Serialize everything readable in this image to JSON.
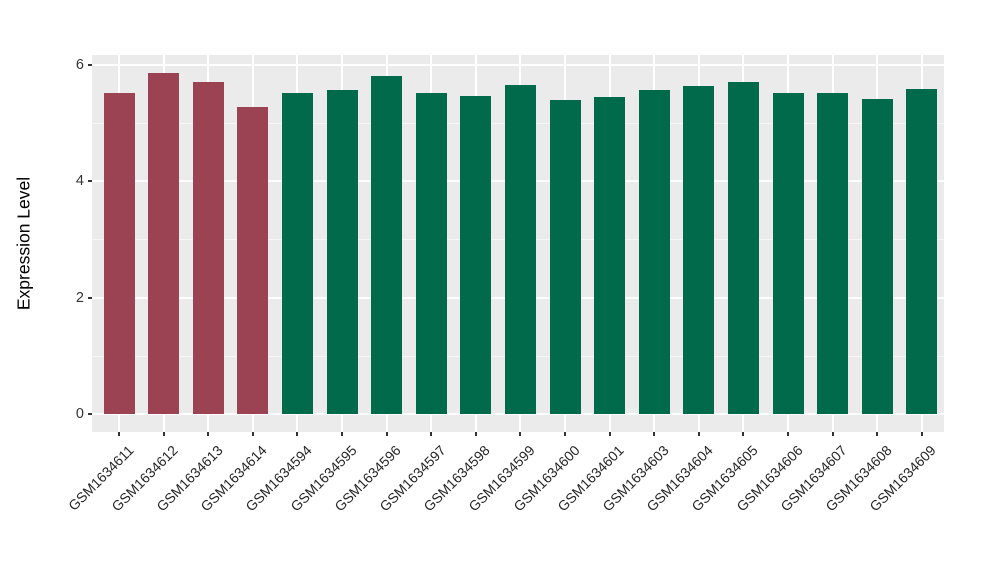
{
  "chart_data": {
    "type": "bar",
    "title": "",
    "xlabel": "",
    "ylabel": "Expression Level",
    "categories": [
      "GSM1634611",
      "GSM1634612",
      "GSM1634613",
      "GSM1634614",
      "GSM1634594",
      "GSM1634595",
      "GSM1634596",
      "GSM1634597",
      "GSM1634598",
      "GSM1634599",
      "GSM1634600",
      "GSM1634601",
      "GSM1634603",
      "GSM1634604",
      "GSM1634605",
      "GSM1634606",
      "GSM1634607",
      "GSM1634608",
      "GSM1634609"
    ],
    "values": [
      5.51,
      5.86,
      5.7,
      5.28,
      5.52,
      5.56,
      5.81,
      5.52,
      5.46,
      5.65,
      5.4,
      5.44,
      5.56,
      5.64,
      5.7,
      5.51,
      5.51,
      5.41,
      5.58
    ],
    "bar_groups": [
      0,
      0,
      0,
      0,
      1,
      1,
      1,
      1,
      1,
      1,
      1,
      1,
      1,
      1,
      1,
      1,
      1,
      1,
      1
    ],
    "group_colors": [
      "#9B4352",
      "#006A4B"
    ],
    "yticks_major": [
      0,
      2,
      4,
      6
    ],
    "yticks_minor": [
      1,
      3,
      5
    ],
    "ylim": [
      -0.31,
      6.17
    ],
    "legend": "none",
    "grid": "white major and minor horizontal lines, white vertical lines at bar centers, on gray panel",
    "panel_background": "#EBEBEB",
    "grid_color": "#FFFFFF",
    "axis_text_color": "#333333",
    "axis_title_color": "#000000"
  }
}
